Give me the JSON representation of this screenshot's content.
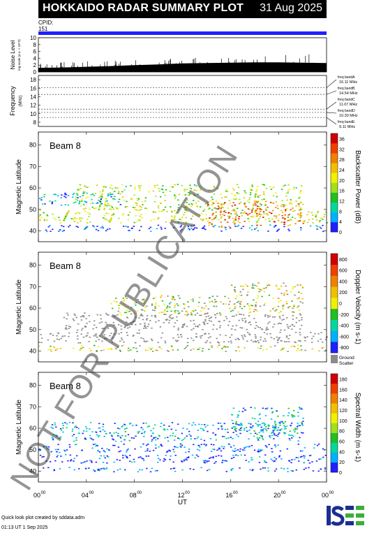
{
  "header": {
    "title": "HOKKAIDO RADAR SUMMARY PLOT",
    "date": "31 Aug 2025"
  },
  "cpid": {
    "label": "CPID:",
    "value": "151"
  },
  "colors": {
    "title_bg": "#000000",
    "cpid_bar": "#2020ff",
    "ground_scatter": "#8c8c8c",
    "logo_green": "#3cae3a",
    "logo_blue": "#1c2f8f"
  },
  "watermark": "NOT FOR PUBLICATION",
  "footer": {
    "created": "Quick look plot created by sddata.adm",
    "timestamp": "01:13 UT  1 Sep 2025"
  },
  "logo": "ISEE",
  "chart_data": [
    {
      "type": "area",
      "ylabel": "Noise Level",
      "ysublabel": "log-scale (a.u. × 10^3)",
      "ylim": [
        0,
        10
      ],
      "yticks": [
        "0",
        "2",
        "4",
        "6",
        "8",
        "10"
      ],
      "x": [
        0,
        2,
        4,
        6,
        8,
        10,
        12,
        14,
        16,
        18,
        20,
        22,
        24
      ],
      "values": [
        1.2,
        1.3,
        1.5,
        1.7,
        2.0,
        2.2,
        2.5,
        2.6,
        2.7,
        2.8,
        2.8,
        2.7,
        2.6
      ]
    },
    {
      "type": "line",
      "ylabel": "Frequency",
      "yunit": "(MHz)",
      "ylim": [
        7,
        19
      ],
      "yticks": [
        "8",
        "10",
        "12",
        "14",
        "16",
        "18"
      ],
      "levels": [
        16.11,
        14.54,
        11.07,
        10.3,
        9.11
      ],
      "bands": [
        {
          "name": "freq bandA",
          "value": "16.11 MHz"
        },
        {
          "name": "freq bandB",
          "value": "14.54 MHz"
        },
        {
          "name": "freq bandC",
          "value": "11.07 MHz"
        },
        {
          "name": "freq bandD",
          "value": "10.30 MHz"
        },
        {
          "name": "freq bandE",
          "value": "9.11 MHz"
        }
      ]
    },
    {
      "type": "heatmap",
      "label": "Beam  8",
      "ylabel": "Magnetic Latitude",
      "ylim": [
        35,
        86
      ],
      "yticks": [
        "40",
        "50",
        "60",
        "70",
        "80"
      ],
      "colorbar_label": "Backscatter Power (dB)",
      "colorbar_ticks": [
        "0",
        "4",
        "8",
        "12",
        "16",
        "20",
        "24",
        "28",
        "32",
        "36"
      ],
      "colorbar_range": [
        0,
        38
      ],
      "colormap": [
        "#2020ff",
        "#00b0ff",
        "#00d8a0",
        "#20c020",
        "#a0e020",
        "#f0f000",
        "#f0c000",
        "#f08000",
        "#f04000",
        "#d00000"
      ],
      "bands": [
        {
          "t": [
            0,
            24
          ],
          "lat": [
            44,
            50
          ],
          "value": 20
        },
        {
          "t": [
            3,
            22
          ],
          "lat": [
            50,
            62
          ],
          "value": 18
        },
        {
          "t": [
            14,
            22
          ],
          "lat": [
            42,
            54
          ],
          "value": 30
        },
        {
          "t": [
            0,
            7
          ],
          "lat": [
            52,
            58
          ],
          "value": 6
        },
        {
          "t": [
            0,
            24
          ],
          "lat": [
            40,
            43
          ],
          "value": 2
        }
      ]
    },
    {
      "type": "heatmap",
      "label": "Beam  8",
      "ylabel": "Magnetic Latitude",
      "ylim": [
        35,
        86
      ],
      "yticks": [
        "40",
        "50",
        "60",
        "70",
        "80"
      ],
      "colorbar_label": "Doppler Velocity (m s-1)",
      "colorbar_ticks": [
        "800",
        "600",
        "400",
        "200",
        "0",
        "-200",
        "-400",
        "-600",
        "-800"
      ],
      "colorbar_range": [
        -900,
        900
      ],
      "colormap": [
        "#d00000",
        "#f04000",
        "#f08000",
        "#f0c000",
        "#f0f000",
        "#20c020",
        "#00d8a0",
        "#00b0ff",
        "#2020ff"
      ],
      "ground_scatter_label": "Ground Scatter",
      "bands": [
        {
          "t": [
            0,
            24
          ],
          "lat": [
            44,
            49
          ],
          "value": "gs"
        },
        {
          "t": [
            2,
            22
          ],
          "lat": [
            50,
            58
          ],
          "value": "gs"
        },
        {
          "t": [
            6,
            16
          ],
          "lat": [
            57,
            66
          ],
          "value": 0
        },
        {
          "t": [
            16,
            22
          ],
          "lat": [
            58,
            72
          ],
          "value": 100
        },
        {
          "t": [
            0,
            24
          ],
          "lat": [
            40,
            43
          ],
          "value": 0
        }
      ]
    },
    {
      "type": "heatmap",
      "label": "Beam  8",
      "ylabel": "Magnetic Latitude",
      "ylim": [
        35,
        86
      ],
      "yticks": [
        "40",
        "50",
        "60",
        "70",
        "80"
      ],
      "colorbar_label": "Spectral Width (m s-1)",
      "colorbar_ticks": [
        "0",
        "20",
        "40",
        "60",
        "80",
        "100",
        "120",
        "140",
        "160",
        "180"
      ],
      "colorbar_range": [
        0,
        190
      ],
      "colormap": [
        "#2020ff",
        "#00b0ff",
        "#00d8a0",
        "#20c020",
        "#a0e020",
        "#f0f000",
        "#f0c000",
        "#f08000",
        "#f04000",
        "#d00000"
      ],
      "bands": [
        {
          "t": [
            0,
            24
          ],
          "lat": [
            44,
            48
          ],
          "value": 10
        },
        {
          "t": [
            0,
            24
          ],
          "lat": [
            49,
            53
          ],
          "value": 12
        },
        {
          "t": [
            1,
            22
          ],
          "lat": [
            54,
            63
          ],
          "value": 30
        },
        {
          "t": [
            16,
            22
          ],
          "lat": [
            58,
            70
          ],
          "value": 40
        },
        {
          "t": [
            0,
            24
          ],
          "lat": [
            40,
            42
          ],
          "value": 10
        }
      ]
    }
  ],
  "xaxis": {
    "label": "UT",
    "ticks": [
      {
        "h": "00",
        "m": "00"
      },
      {
        "h": "04",
        "m": "00"
      },
      {
        "h": "08",
        "m": "00"
      },
      {
        "h": "12",
        "m": "00"
      },
      {
        "h": "16",
        "m": "00"
      },
      {
        "h": "20",
        "m": "00"
      },
      {
        "h": "00",
        "m": "00"
      }
    ],
    "range": [
      0,
      24
    ]
  }
}
